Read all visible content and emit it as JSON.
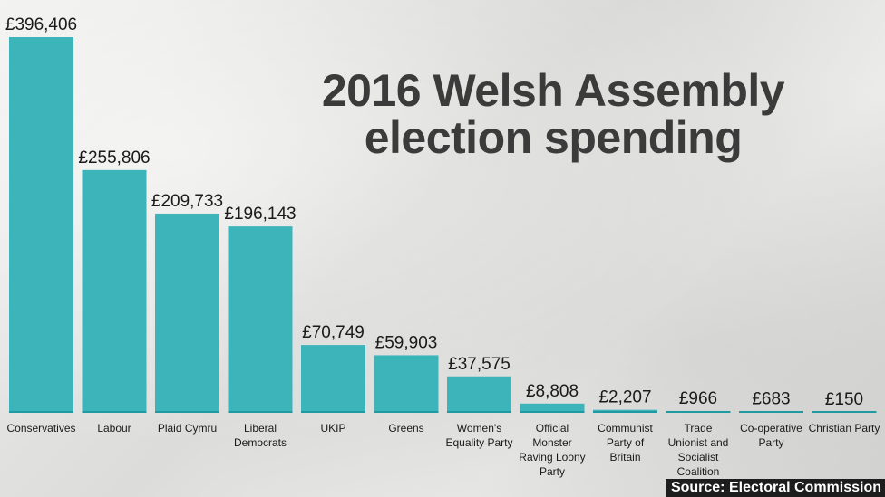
{
  "chart_data": {
    "type": "bar",
    "title_lines": [
      "2016 Welsh Assembly",
      "election spending"
    ],
    "categories": [
      [
        "Conservatives"
      ],
      [
        "Labour"
      ],
      [
        "Plaid Cymru"
      ],
      [
        "Liberal",
        "Democrats"
      ],
      [
        "UKIP"
      ],
      [
        "Greens"
      ],
      [
        "Women's",
        "Equality Party"
      ],
      [
        "Official",
        "Monster",
        "Raving Loony",
        "Party"
      ],
      [
        "Communist",
        "Party of",
        "Britain"
      ],
      [
        "Trade",
        "Unionist and",
        "Socialist",
        "Coalition"
      ],
      [
        "Co-operative",
        "Party"
      ],
      [
        "Christian Party"
      ]
    ],
    "values": [
      396406,
      255806,
      209733,
      196143,
      70749,
      59903,
      37575,
      8808,
      2207,
      966,
      683,
      150
    ],
    "value_labels": [
      "£396,406",
      "£255,806",
      "£209,733",
      "£196,143",
      "£70,749",
      "£59,903",
      "£37,575",
      "£8,808",
      "£2,207",
      "£966",
      "£683",
      "£150"
    ],
    "bar_color": "#3db3ba",
    "baseline_color": "#1f9aa2",
    "grid": false,
    "legend": "none",
    "ylim": [
      0,
      396406
    ]
  },
  "source": "Source: Electoral Commission"
}
